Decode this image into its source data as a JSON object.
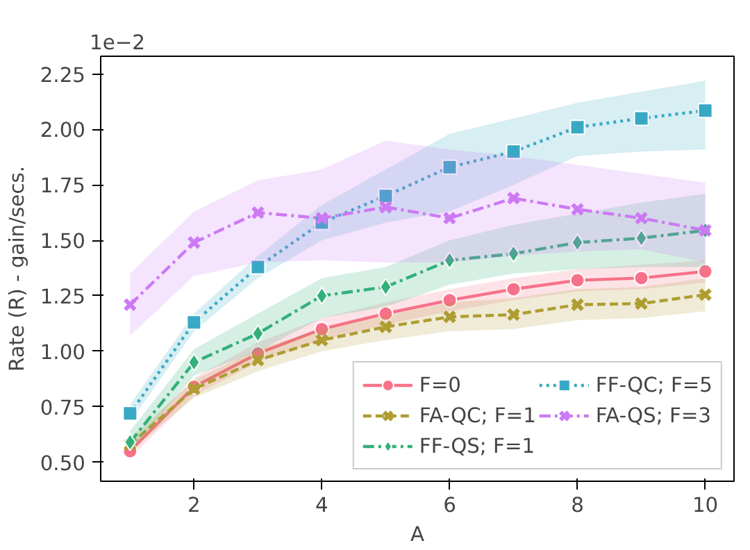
{
  "chart_data": {
    "type": "line",
    "xlabel": "A",
    "ylabel": "Rate (R) - gain/secs.",
    "annotations": [
      "1e−2"
    ],
    "x": [
      1,
      2,
      3,
      4,
      5,
      6,
      7,
      8,
      9,
      10
    ],
    "xlim": [
      0.54,
      10.45
    ],
    "xticks": [
      2,
      4,
      6,
      8,
      10
    ],
    "ylim": [
      0.414,
      2.33
    ],
    "yticks": [
      {
        "value": 0.5,
        "label": "0.50"
      },
      {
        "value": 0.75,
        "label": "0.75"
      },
      {
        "value": 1.0,
        "label": "1.00"
      },
      {
        "value": 1.25,
        "label": "1.25"
      },
      {
        "value": 1.5,
        "label": "1.50"
      },
      {
        "value": 1.75,
        "label": "1.75"
      },
      {
        "value": 2.0,
        "label": "2.00"
      },
      {
        "value": 2.25,
        "label": "2.25"
      }
    ],
    "grid": false,
    "legend": "bottom right",
    "series": [
      {
        "name": "F=0",
        "color": "#f77189",
        "marker": "circle",
        "line_style": "solid",
        "values": [
          0.55,
          0.84,
          0.99,
          1.1,
          1.17,
          1.23,
          1.28,
          1.32,
          1.33,
          1.36
        ],
        "lower": [
          0.52,
          0.8,
          0.95,
          1.05,
          1.12,
          1.18,
          1.23,
          1.27,
          1.28,
          1.31
        ],
        "upper": [
          0.58,
          0.88,
          1.04,
          1.15,
          1.22,
          1.28,
          1.33,
          1.37,
          1.39,
          1.41
        ]
      },
      {
        "name": "FA-QC; F=1",
        "color": "#ae9d31",
        "marker": "cross",
        "line_style": "dashed",
        "values": [
          0.58,
          0.83,
          0.96,
          1.05,
          1.11,
          1.155,
          1.165,
          1.21,
          1.215,
          1.255
        ],
        "lower": [
          0.55,
          0.79,
          0.91,
          1.0,
          1.05,
          1.09,
          1.1,
          1.14,
          1.15,
          1.18
        ],
        "upper": [
          0.61,
          0.87,
          1.01,
          1.1,
          1.16,
          1.22,
          1.24,
          1.28,
          1.29,
          1.33
        ]
      },
      {
        "name": "FF-QS; F=1",
        "color": "#33b07a",
        "marker": "diamond",
        "line_style": "dashdot",
        "values": [
          0.59,
          0.95,
          1.08,
          1.25,
          1.29,
          1.41,
          1.44,
          1.49,
          1.51,
          1.545
        ],
        "lower": [
          0.55,
          0.89,
          1.0,
          1.15,
          1.2,
          1.3,
          1.35,
          1.37,
          1.38,
          1.38
        ],
        "upper": [
          0.64,
          1.01,
          1.17,
          1.33,
          1.38,
          1.5,
          1.57,
          1.62,
          1.67,
          1.71
        ]
      },
      {
        "name": "FF-QC; F=5",
        "color": "#38a9c5",
        "marker": "square",
        "line_style": "dotted",
        "values": [
          0.72,
          1.13,
          1.38,
          1.58,
          1.7,
          1.83,
          1.9,
          2.01,
          2.05,
          2.085
        ],
        "lower": [
          0.68,
          1.09,
          1.33,
          1.5,
          1.58,
          1.63,
          1.75,
          1.88,
          1.9,
          1.91
        ],
        "upper": [
          0.76,
          1.17,
          1.43,
          1.66,
          1.82,
          1.98,
          2.05,
          2.12,
          2.17,
          2.22
        ]
      },
      {
        "name": "FA-QS; F=3",
        "color": "#cc7af4",
        "marker": "cross",
        "line_style": "dashdot",
        "values": [
          1.21,
          1.49,
          1.625,
          1.6,
          1.65,
          1.6,
          1.69,
          1.64,
          1.6,
          1.545
        ],
        "lower": [
          1.07,
          1.34,
          1.4,
          1.41,
          1.4,
          1.4,
          1.43,
          1.45,
          1.46,
          1.4
        ],
        "upper": [
          1.35,
          1.63,
          1.77,
          1.82,
          1.95,
          1.91,
          1.88,
          1.84,
          1.8,
          1.76
        ]
      }
    ]
  }
}
